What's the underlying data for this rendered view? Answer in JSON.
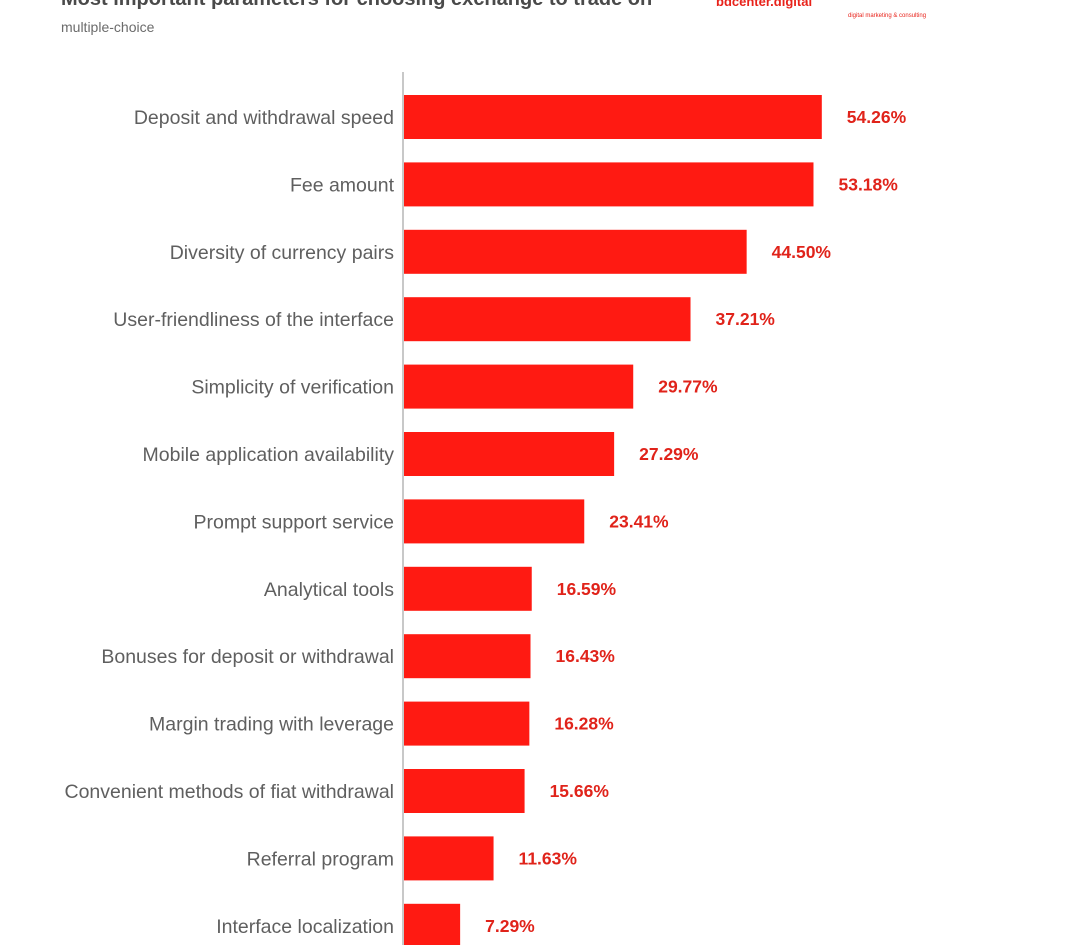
{
  "header": {
    "title": "Most important parameters for choosing exchange to trade on",
    "subtitle": "multiple-choice",
    "brand_text": "bdcenter.digital",
    "logo_tagline": "digital marketing & consulting"
  },
  "colors": {
    "bar": "#ff1a12",
    "label_value": "#e0231a",
    "category_text": "#5f5f5f",
    "axis": "#c8c8c8"
  },
  "chart_data": {
    "type": "bar",
    "orientation": "horizontal",
    "categories": [
      "Deposit and withdrawal speed",
      "Fee amount",
      "Diversity of currency pairs",
      "User-friendliness of the interface",
      "Simplicity of verification",
      "Mobile application availability",
      "Prompt support service",
      "Analytical tools",
      "Bonuses for deposit or withdrawal",
      "Margin trading with leverage",
      "Convenient methods of fiat withdrawal",
      "Referral program",
      "Interface localization"
    ],
    "values": [
      54.26,
      53.18,
      44.5,
      37.21,
      29.77,
      27.29,
      23.41,
      16.59,
      16.43,
      16.28,
      15.66,
      11.63,
      7.29
    ],
    "value_labels": [
      "54.26%",
      "53.18%",
      "44.50%",
      "37.21%",
      "29.77%",
      "27.29%",
      "23.41%",
      "16.59%",
      "16.43%",
      "16.28%",
      "15.66%",
      "11.63%",
      "7.29%"
    ],
    "unit": "%",
    "grid": false,
    "legend": "none"
  }
}
